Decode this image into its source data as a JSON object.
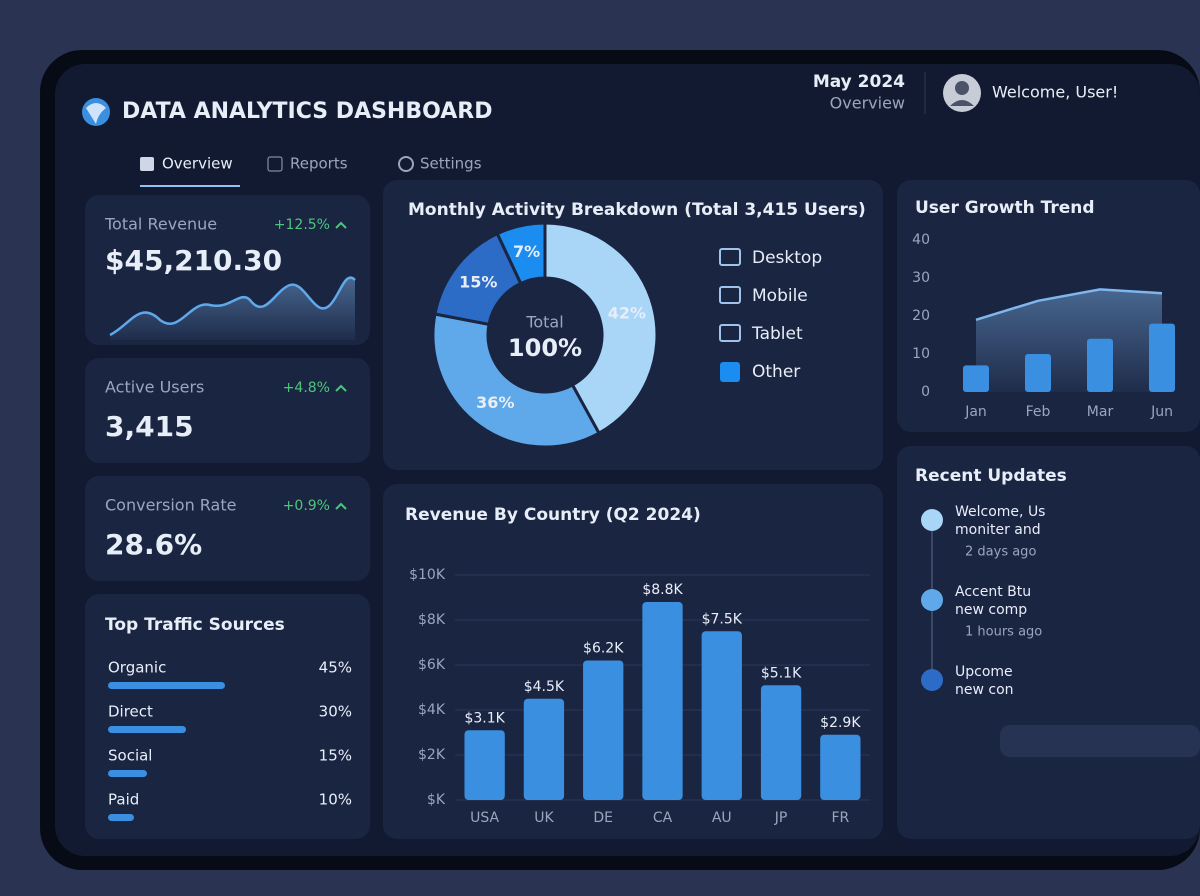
{
  "header": {
    "title": "DATA ANALYTICS DASHBOARD",
    "date": "May 2024",
    "date_sub": "Overview",
    "welcome": "Welcome, User!"
  },
  "nav": [
    "Overview",
    "Reports",
    "Settings"
  ],
  "kpis": [
    {
      "label": "Total Revenue",
      "value": "$45,210.30",
      "change": "+12.5%"
    },
    {
      "label": "Active Users",
      "value": "3,415",
      "change": "+4.8%"
    },
    {
      "label": "Conversion Rate",
      "value": "28.6%",
      "change": "+0.9%"
    }
  ],
  "updates": {
    "title": "Recent Updates",
    "items": [
      {
        "lines": [
          "Welcome, Us",
          "moniter and"
        ],
        "time": "2 days ago"
      },
      {
        "lines": [
          "Accent Btu",
          "new comp"
        ],
        "time": "1 hours ago"
      },
      {
        "lines": [
          "Upcome",
          "new con"
        ]
      }
    ]
  },
  "chart_data": [
    {
      "type": "pie",
      "title": "Monthly Activity Breakdown (Total 3,415 Users)",
      "center_label": "Total",
      "center_value": "100%",
      "categories": [
        "Desktop",
        "Mobile",
        "Tablet",
        "Other"
      ],
      "values": [
        42,
        36,
        15,
        7
      ],
      "value_labels": [
        "42%",
        "36%",
        "15%",
        "7%"
      ],
      "colors": [
        "#a9d5f7",
        "#5fa9ea",
        "#2d6cc6",
        "#1b8cf0"
      ]
    },
    {
      "type": "bar_line",
      "title": "User Growth Trend",
      "categories": [
        "Jan",
        "Feb",
        "Mar",
        "Jun"
      ],
      "bar_values": [
        7,
        10,
        14,
        18
      ],
      "line_values": [
        19,
        24,
        27,
        26
      ],
      "bar_color": "#3b8fe0",
      "line_color": "#7fb6ee",
      "ylim": [
        0,
        40
      ],
      "yticks": [
        0,
        10,
        20,
        30,
        40
      ]
    },
    {
      "type": "bar",
      "title": "Revenue By Country (Q2 2024)",
      "categories": [
        "USA",
        "UK",
        "DE",
        "CA",
        "AU",
        "JP",
        "FR"
      ],
      "values": [
        3.1,
        4.5,
        6.2,
        8.8,
        7.5,
        5.1,
        2.9
      ],
      "value_labels": [
        "$3.1K",
        "$4.5K",
        "$6.2K",
        "$8.8K",
        "$7.5K",
        "$5.1K",
        "$2.9K"
      ],
      "color": "#3b8fe0",
      "ylim": [
        0,
        10
      ],
      "yticks": [
        {
          "value": 0,
          "label": "$K"
        },
        {
          "value": 2,
          "label": "$2K"
        },
        {
          "value": 4,
          "label": "$4K"
        },
        {
          "value": 6,
          "label": "$6K"
        },
        {
          "value": 8,
          "label": "$8K"
        },
        {
          "value": 10,
          "label": "$10K"
        }
      ],
      "grid": true
    },
    {
      "type": "hbar",
      "title": "Top Traffic Sources",
      "categories": [
        "Organic",
        "Direct",
        "Social",
        "Paid"
      ],
      "values": [
        45,
        30,
        15,
        10
      ],
      "value_labels": [
        "45%",
        "30%",
        "15%",
        "10%"
      ],
      "color": "#3b8fe0"
    }
  ]
}
